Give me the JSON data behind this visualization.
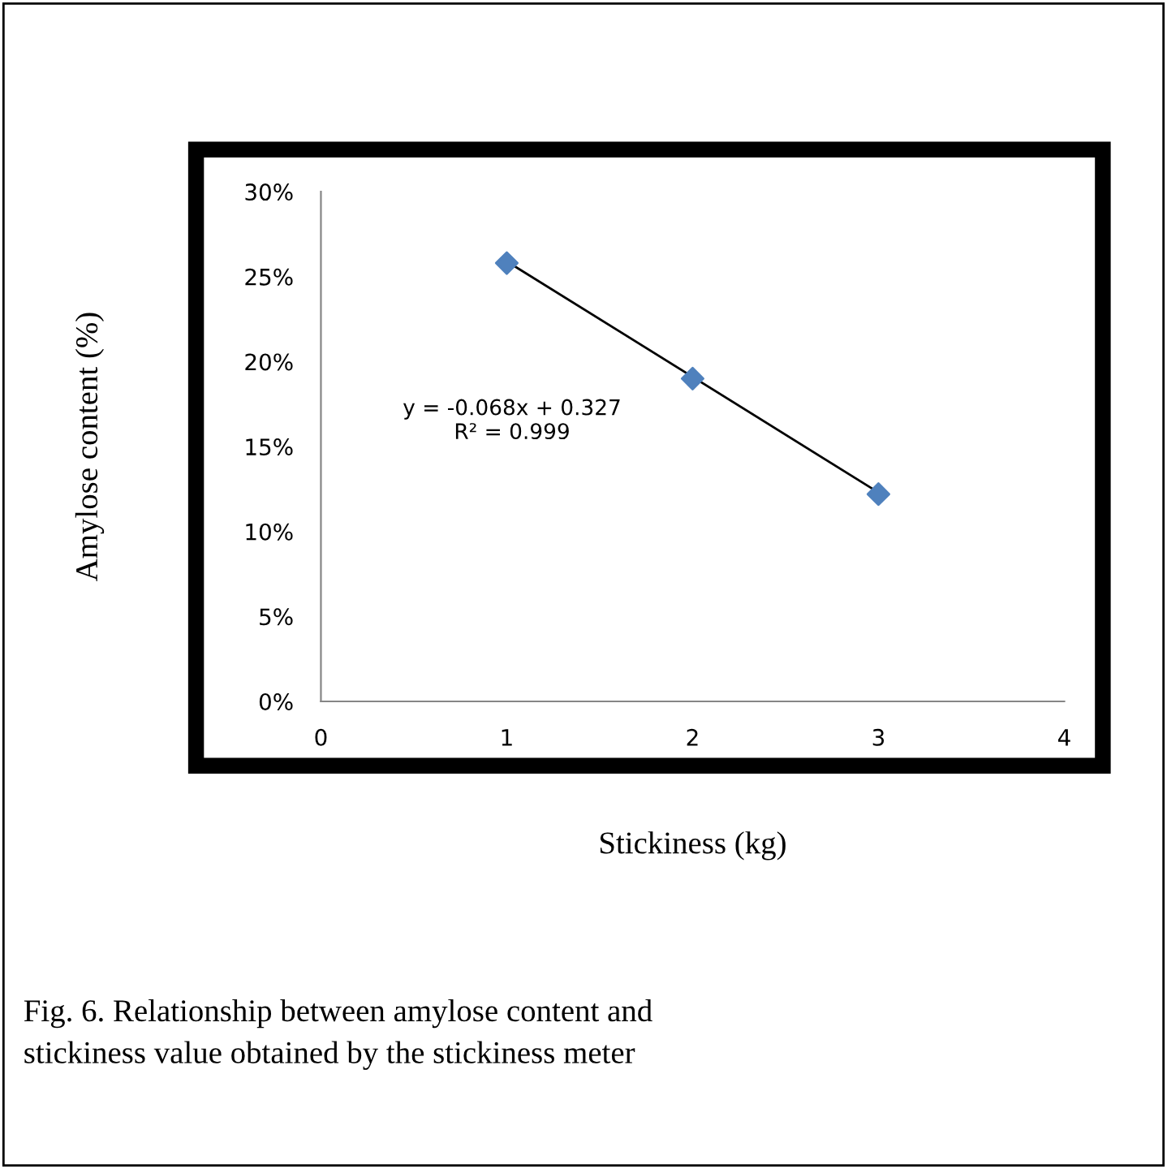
{
  "chart_data": {
    "type": "scatter",
    "xlabel": "Stickiness (kg)",
    "ylabel": "Amylose content (%)",
    "series": [
      {
        "color": "#4f81bd",
        "marker": "diamond",
        "x": [
          1,
          2,
          3
        ],
        "values": [
          25.8,
          19.0,
          12.2
        ]
      },
      {
        "type": "line",
        "color": "#000000",
        "marker": "none",
        "x": [
          1,
          3
        ],
        "values": [
          25.9,
          12.3
        ]
      }
    ],
    "xlim": [
      0,
      4
    ],
    "xticks": [
      0,
      1,
      2,
      3,
      4
    ],
    "ylim": [
      0,
      30
    ],
    "yticks": [
      {
        "value": 0,
        "label": "0%"
      },
      {
        "value": 5,
        "label": "5%"
      },
      {
        "value": 10,
        "label": "10%"
      },
      {
        "value": 15,
        "label": "15%"
      },
      {
        "value": 20,
        "label": "20%"
      },
      {
        "value": 25,
        "label": "25%"
      },
      {
        "value": 30,
        "label": "30%"
      }
    ],
    "grid": false,
    "legend": false,
    "annotations": [
      "y = -0.068x + 0.327\nR² = 0.999",
      "Fig. 6. Relationship between amylose content and\nstickiness value obtained by the stickiness meter"
    ]
  }
}
